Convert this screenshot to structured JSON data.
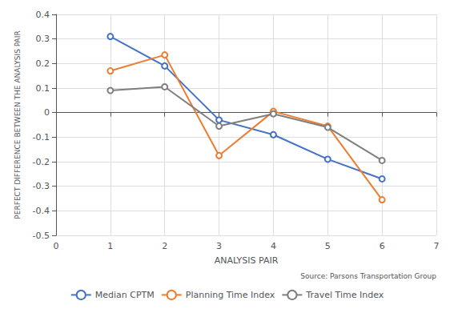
{
  "chart_data": {
    "type": "line",
    "x": [
      1,
      2,
      3,
      4,
      5,
      6
    ],
    "series": [
      {
        "name": "Median CPTM",
        "color": "#4472C4",
        "values": [
          0.31,
          0.19,
          -0.03,
          -0.09,
          -0.19,
          -0.27
        ]
      },
      {
        "name": "Planning Time Index",
        "color": "#ED7D31",
        "values": [
          0.17,
          0.235,
          -0.175,
          0.005,
          -0.055,
          -0.355
        ]
      },
      {
        "name": "Travel Time Index",
        "color": "#7F7F7F",
        "values": [
          0.09,
          0.105,
          -0.055,
          -0.005,
          -0.06,
          -0.195
        ]
      }
    ],
    "xlabel": "ANALYSIS PAIR",
    "ylabel": "PERFECT DIFFERENCE BETWEEN THE ANALYSIS PAIR",
    "annotation": "Source: Parsons Transportation Group",
    "xlim": [
      0,
      7
    ],
    "xticks": [
      0,
      1,
      2,
      3,
      4,
      5,
      6,
      7
    ],
    "ylim": [
      -0.5,
      0.4
    ],
    "yticks": [
      -0.5,
      -0.4,
      -0.3,
      -0.2,
      -0.1,
      0,
      0.1,
      0.2,
      0.3,
      0.4
    ],
    "marker": "circle",
    "grid": true,
    "legend": "bottom"
  }
}
